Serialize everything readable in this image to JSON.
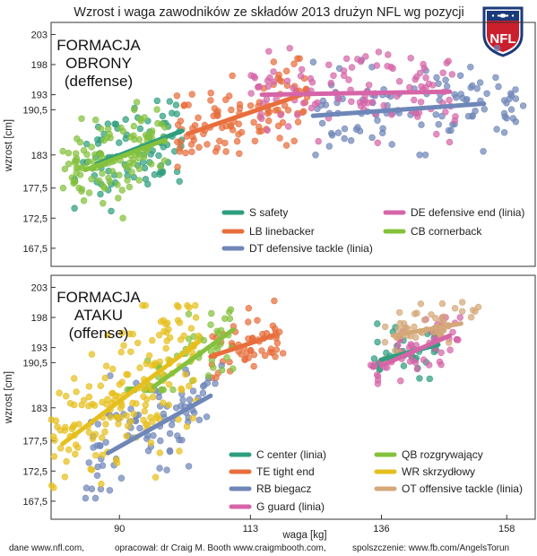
{
  "title": "Wzrost i waga zawodników ze składów 2013 drużyn NFL wg pozycji",
  "logo_text": "NFL",
  "colors": {
    "S": "#2e9e7e",
    "LB": "#e86e3c",
    "DT": "#6f86b8",
    "DE": "#d665a8",
    "CB": "#84c13c",
    "C": "#2e9e7e",
    "TE": "#e86e3c",
    "RB": "#6f86b8",
    "G": "#d665a8",
    "QB": "#84c13c",
    "WR": "#e6bf1d",
    "OT": "#d4a878"
  },
  "footer": {
    "left": "dane www.nfl.com,",
    "middle": "opracował: dr Craig M. Booth www.craigmbooth.com,",
    "right": "spolszczenie: www.fb.com/AngelsTorun"
  },
  "chart_data": [
    {
      "type": "scatter",
      "panel_label": [
        "FORMACJA",
        "OBRONY",
        "(deffense)"
      ],
      "xlabel": "",
      "ylabel": "wzrost [cm]",
      "xlim": [
        78,
        163
      ],
      "ylim": [
        164.5,
        205
      ],
      "x_ticks": [],
      "y_ticks": [
        "203",
        "198",
        "193",
        "190,5",
        "183",
        "177,5",
        "172,5",
        "167,5"
      ],
      "legend_placement": "bottom-right",
      "series": [
        {
          "key": "S",
          "name": "S safety",
          "x_range": [
            82,
            101
          ],
          "y_range": [
            172,
            192
          ],
          "count": 90,
          "fit": [
            [
              86,
              181.5
            ],
            [
              101,
              187
            ]
          ]
        },
        {
          "key": "LB",
          "name": "LB linebacker",
          "x_range": [
            100,
            123
          ],
          "y_range": [
            181,
            199
          ],
          "count": 110,
          "fit": [
            [
              102,
              186.5
            ],
            [
              122,
              193
            ]
          ]
        },
        {
          "key": "DT",
          "name": "DT defensive tackle (linia)",
          "x_range": [
            124,
            162
          ],
          "y_range": [
            183,
            201
          ],
          "count": 110,
          "fit": [
            [
              124,
              189.5
            ],
            [
              154,
              191.5
            ]
          ]
        },
        {
          "key": "DE",
          "name": "DE defensive end (linia)",
          "x_range": [
            113,
            150
          ],
          "y_range": [
            185,
            203
          ],
          "count": 110,
          "fit": [
            [
              115,
              193
            ],
            [
              148,
              193.5
            ]
          ]
        },
        {
          "key": "CB",
          "name": "CB cornerback",
          "x_range": [
            80,
            98
          ],
          "y_range": [
            172,
            192
          ],
          "count": 120,
          "fit": [
            [
              84,
              180.5
            ],
            [
              98,
              185.5
            ]
          ]
        }
      ],
      "legend": [
        {
          "key": "S",
          "name": "S safety"
        },
        {
          "key": "DE",
          "name": "DE defensive end (linia)"
        },
        {
          "key": "LB",
          "name": "LB linebacker"
        },
        {
          "key": "CB",
          "name": "CB cornerback"
        },
        {
          "key": "DT",
          "name": "DT defensive tackle (linia)"
        }
      ]
    },
    {
      "type": "scatter",
      "panel_label": [
        "FORMACJA",
        "ATAKU",
        "(offense)"
      ],
      "xlabel": "waga [kg]",
      "ylabel": "wzrost [cm]",
      "xlim": [
        78,
        163
      ],
      "ylim": [
        164.5,
        205
      ],
      "x_ticks": [
        "90",
        "113",
        "136",
        "158"
      ],
      "y_ticks": [
        "203",
        "198",
        "193",
        "190,5",
        "183",
        "177,5",
        "172,5",
        "167,5"
      ],
      "legend_placement": "bottom-right",
      "series": [
        {
          "key": "C",
          "name": "C center (linia)",
          "x_range": [
            134,
            146
          ],
          "y_range": [
            186,
            197
          ],
          "count": 40,
          "fit": [
            [
              136,
              191
            ],
            [
              146,
              193.5
            ]
          ]
        },
        {
          "key": "TE",
          "name": "TE tight end",
          "x_range": [
            106,
            119
          ],
          "y_range": [
            188,
            201
          ],
          "count": 60,
          "fit": [
            [
              106,
              191.5
            ],
            [
              117,
              195
            ]
          ]
        },
        {
          "key": "RB",
          "name": "RB biegacz",
          "x_range": [
            84,
            108
          ],
          "y_range": [
            168,
            190
          ],
          "count": 90,
          "fit": [
            [
              88,
              175.5
            ],
            [
              106,
              185
            ]
          ]
        },
        {
          "key": "G",
          "name": "G guard (linia)",
          "x_range": [
            134,
            150
          ],
          "y_range": [
            187,
            198
          ],
          "count": 60,
          "fit": [
            [
              136,
              190
            ],
            [
              148,
              195
            ]
          ]
        },
        {
          "key": "QB",
          "name": "QB rozgrywający",
          "x_range": [
            90,
            110
          ],
          "y_range": [
            186,
            203
          ],
          "count": 60,
          "fit": [
            [
              96,
              186.5
            ],
            [
              110,
              196
            ]
          ]
        },
        {
          "key": "WR",
          "name": "WR skrzydłowy",
          "x_range": [
            78,
            104
          ],
          "y_range": [
            167,
            200
          ],
          "count": 180,
          "fit": [
            [
              80,
              177
            ],
            [
              104,
              194
            ]
          ]
        },
        {
          "key": "OT",
          "name": "OT offensive tackle (linia)",
          "x_range": [
            136,
            154
          ],
          "y_range": [
            190,
            201
          ],
          "count": 50,
          "fit": [
            [
              138,
              195
            ],
            [
              150,
              197
            ]
          ]
        }
      ],
      "legend": [
        {
          "key": "C",
          "name": "C center (linia)"
        },
        {
          "key": "QB",
          "name": "QB rozgrywający"
        },
        {
          "key": "TE",
          "name": "TE tight end"
        },
        {
          "key": "WR",
          "name": "WR skrzydłowy"
        },
        {
          "key": "RB",
          "name": "RB biegacz"
        },
        {
          "key": "OT",
          "name": "OT offensive tackle (linia)"
        },
        {
          "key": "G",
          "name": "G guard (linia)"
        }
      ]
    }
  ]
}
